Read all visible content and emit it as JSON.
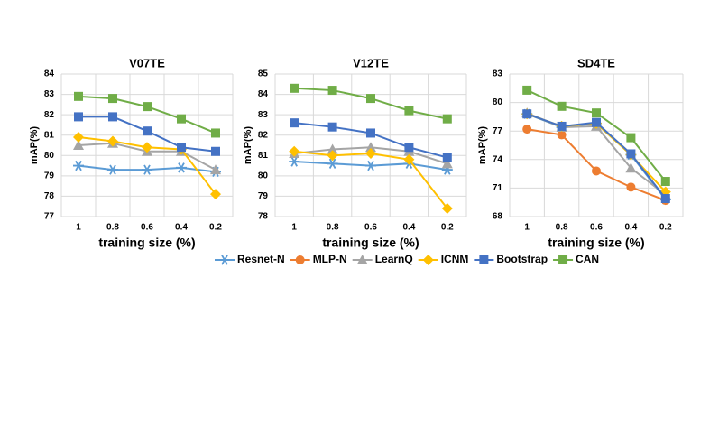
{
  "chart_data": [
    {
      "type": "line",
      "title": "V07TE",
      "xlabel": "training size (%)",
      "ylabel": "mAP(%)",
      "categories": [
        "1",
        "0.8",
        "0.6",
        "0.4",
        "0.2"
      ],
      "ylim": [
        77,
        84
      ],
      "yticks": [
        77,
        78,
        79,
        80,
        81,
        82,
        83,
        84
      ],
      "grid": true,
      "series": [
        {
          "name": "Resnet-N",
          "color": "#5b9bd5",
          "marker": "asterisk",
          "values": [
            79.5,
            79.3,
            79.3,
            79.4,
            79.2
          ]
        },
        {
          "name": "LearnQ",
          "color": "#a5a5a5",
          "marker": "triangle",
          "values": [
            80.5,
            80.6,
            80.2,
            80.2,
            79.3
          ]
        },
        {
          "name": "ICNM",
          "color": "#ffc000",
          "marker": "diamond",
          "values": [
            80.9,
            80.7,
            80.4,
            80.3,
            78.1
          ]
        },
        {
          "name": "Bootstrap",
          "color": "#4472c4",
          "marker": "square",
          "values": [
            81.9,
            81.9,
            81.2,
            80.4,
            80.2
          ]
        },
        {
          "name": "CAN",
          "color": "#70ad47",
          "marker": "square",
          "values": [
            82.9,
            82.8,
            82.4,
            81.8,
            81.1
          ]
        }
      ]
    },
    {
      "type": "line",
      "title": "V12TE",
      "xlabel": "training size (%)",
      "ylabel": "mAP(%)",
      "categories": [
        "1",
        "0.8",
        "0.6",
        "0.4",
        "0.2"
      ],
      "ylim": [
        78,
        85
      ],
      "yticks": [
        78,
        79,
        80,
        81,
        82,
        83,
        84,
        85
      ],
      "grid": true,
      "series": [
        {
          "name": "Resnet-N",
          "color": "#5b9bd5",
          "marker": "asterisk",
          "values": [
            80.7,
            80.6,
            80.5,
            80.6,
            80.3
          ]
        },
        {
          "name": "LearnQ",
          "color": "#a5a5a5",
          "marker": "triangle",
          "values": [
            81.1,
            81.3,
            81.4,
            81.2,
            80.6
          ]
        },
        {
          "name": "ICNM",
          "color": "#ffc000",
          "marker": "diamond",
          "values": [
            81.2,
            81.0,
            81.1,
            80.8,
            78.4
          ]
        },
        {
          "name": "Bootstrap",
          "color": "#4472c4",
          "marker": "square",
          "values": [
            82.6,
            82.4,
            82.1,
            81.4,
            80.9
          ]
        },
        {
          "name": "CAN",
          "color": "#70ad47",
          "marker": "square",
          "values": [
            84.3,
            84.2,
            83.8,
            83.2,
            82.8
          ]
        }
      ]
    },
    {
      "type": "line",
      "title": "SD4TE",
      "xlabel": "training size (%)",
      "ylabel": "mAP(%)",
      "categories": [
        "1",
        "0.8",
        "0.6",
        "0.4",
        "0.2"
      ],
      "ylim": [
        68,
        83
      ],
      "yticks": [
        68,
        71,
        74,
        77,
        80,
        83
      ],
      "grid": true,
      "series": [
        {
          "name": "Resnet-N",
          "color": "#5b9bd5",
          "marker": "asterisk",
          "values": [
            78.8,
            77.4,
            77.8,
            74.5,
            69.8
          ]
        },
        {
          "name": "MLP-N",
          "color": "#ed7d31",
          "marker": "circle",
          "values": [
            77.2,
            76.6,
            72.8,
            71.1,
            69.7
          ]
        },
        {
          "name": "LearnQ",
          "color": "#a5a5a5",
          "marker": "triangle",
          "values": [
            78.9,
            77.4,
            77.5,
            73.1,
            70.3
          ]
        },
        {
          "name": "ICNM",
          "color": "#ffc000",
          "marker": "diamond",
          "values": [
            78.8,
            77.5,
            77.8,
            74.5,
            70.6
          ]
        },
        {
          "name": "Bootstrap",
          "color": "#4472c4",
          "marker": "square",
          "values": [
            78.8,
            77.5,
            77.9,
            74.6,
            69.9
          ]
        },
        {
          "name": "CAN",
          "color": "#70ad47",
          "marker": "square",
          "values": [
            81.3,
            79.6,
            78.9,
            76.3,
            71.7
          ]
        }
      ]
    }
  ]
}
